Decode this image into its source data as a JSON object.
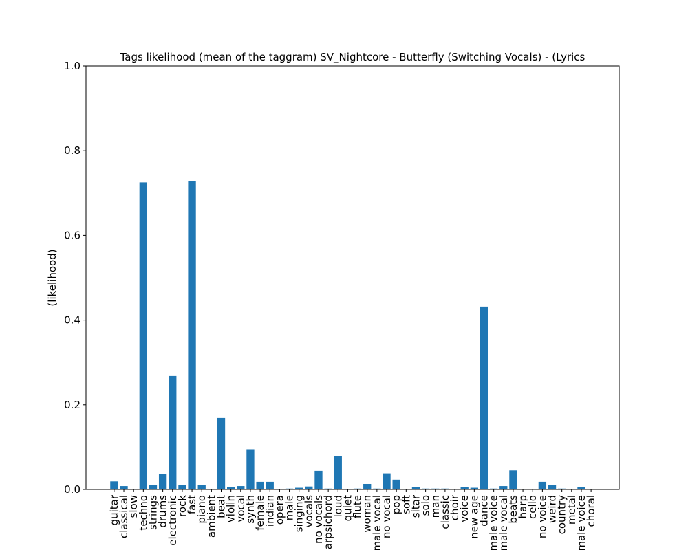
{
  "chart_data": {
    "type": "bar",
    "title": "Tags likelihood (mean of the taggram) SV_Nightcore - Butterfly (Switching Vocals) - (Lyrics",
    "xlabel": "",
    "ylabel": "(likelihood)",
    "ylim": [
      0,
      1.0
    ],
    "yticks": [
      "0.0",
      "0.2",
      "0.4",
      "0.6",
      "0.8",
      "1.0"
    ],
    "grid": false,
    "bar_color": "#1f77b4",
    "categories": [
      "guitar",
      "classical",
      "slow",
      "techno",
      "strings",
      "drums",
      "electronic",
      "rock",
      "fast",
      "piano",
      "ambient",
      "beat",
      "violin",
      "vocal",
      "synth",
      "female",
      "indian",
      "opera",
      "male",
      "singing",
      "vocals",
      "no vocals",
      "harpsichord",
      "loud",
      "quiet",
      "flute",
      "woman",
      "male vocal",
      "no vocal",
      "pop",
      "soft",
      "sitar",
      "solo",
      "man",
      "classic",
      "choir",
      "voice",
      "new age",
      "dance",
      "male voice",
      "female vocal",
      "beats",
      "harp",
      "cello",
      "no voice",
      "weird",
      "country",
      "metal",
      "female voice",
      "choral"
    ],
    "values": [
      0.019,
      0.008,
      0.001,
      0.725,
      0.011,
      0.036,
      0.268,
      0.011,
      0.728,
      0.011,
      0.001,
      0.169,
      0.005,
      0.008,
      0.095,
      0.018,
      0.018,
      0.0,
      0.002,
      0.004,
      0.007,
      0.044,
      0.002,
      0.078,
      0.0,
      0.002,
      0.013,
      0.002,
      0.038,
      0.023,
      0.0,
      0.005,
      0.002,
      0.002,
      0.002,
      0.0,
      0.006,
      0.004,
      0.432,
      0.002,
      0.008,
      0.045,
      0.0,
      0.0,
      0.018,
      0.01,
      0.002,
      0.0,
      0.005,
      0.0
    ]
  }
}
